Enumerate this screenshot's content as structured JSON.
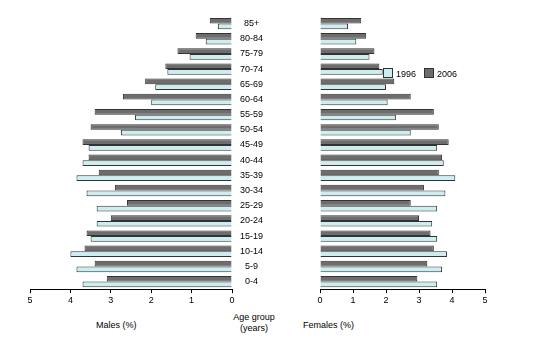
{
  "chart_data": [
    {
      "type": "bar",
      "orientation": "horizontal",
      "grid": false,
      "x_label": "Males (%)",
      "y_label": "Age group (years)",
      "categories": [
        "85+",
        "80-84",
        "75-79",
        "70-74",
        "65-69",
        "60-64",
        "55-59",
        "50-54",
        "45-49",
        "40-44",
        "35-39",
        "30-34",
        "25-29",
        "20-24",
        "15-19",
        "10-14",
        "5-9",
        "0-4"
      ],
      "xlim": [
        5,
        0
      ],
      "xticks": [
        5,
        4,
        3,
        2,
        1,
        0
      ],
      "series": [
        {
          "name": "1996",
          "color": "#cdeef0",
          "values": [
            0.35,
            0.65,
            1.05,
            1.6,
            1.9,
            2.0,
            2.4,
            2.75,
            3.55,
            3.7,
            3.85,
            3.6,
            3.35,
            3.35,
            3.5,
            4.0,
            3.85,
            3.7
          ]
        },
        {
          "name": "2006",
          "color": "#6d6d6d",
          "values": [
            0.55,
            0.9,
            1.35,
            1.65,
            2.15,
            2.7,
            3.4,
            3.5,
            3.7,
            3.55,
            3.3,
            2.9,
            2.6,
            3.0,
            3.6,
            3.65,
            3.4,
            3.1
          ]
        }
      ]
    },
    {
      "type": "bar",
      "orientation": "horizontal",
      "grid": false,
      "tick_labels": "x",
      "legend": "upper right",
      "x_label": "Females (%)",
      "categories": [
        "85+",
        "80-84",
        "75-79",
        "70-74",
        "65-69",
        "60-64",
        "55-59",
        "50-54",
        "45-49",
        "40-44",
        "35-39",
        "30-34",
        "25-29",
        "20-24",
        "15-19",
        "10-14",
        "5-9",
        "0-4"
      ],
      "xlim": [
        0,
        5
      ],
      "xticks": [
        0,
        1,
        2,
        3,
        4,
        5
      ],
      "series": [
        {
          "name": "1996",
          "color": "#cdeef0",
          "values": [
            0.85,
            1.1,
            1.5,
            1.9,
            2.0,
            2.05,
            2.3,
            2.75,
            3.55,
            3.75,
            4.1,
            3.8,
            3.55,
            3.4,
            3.55,
            3.85,
            3.7,
            3.55
          ]
        },
        {
          "name": "2006",
          "color": "#6d6d6d",
          "values": [
            1.25,
            1.4,
            1.65,
            1.8,
            2.25,
            2.75,
            3.45,
            3.6,
            3.9,
            3.7,
            3.6,
            3.15,
            2.75,
            3.0,
            3.35,
            3.45,
            3.25,
            2.95
          ]
        }
      ]
    }
  ]
}
